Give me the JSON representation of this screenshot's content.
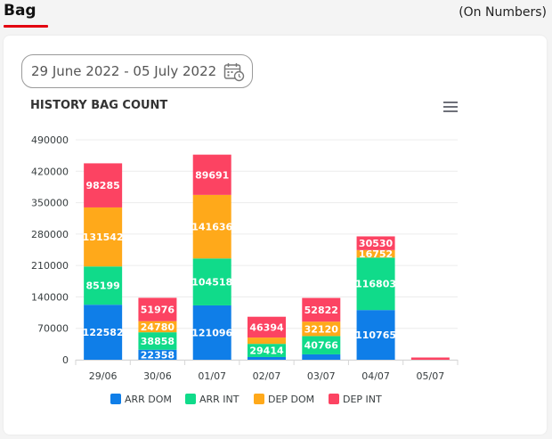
{
  "header": {
    "title": "Bag",
    "units_note": "(On Numbers)"
  },
  "filter": {
    "date_range": "29 June 2022 - 05 July 2022",
    "icon": "calendar-icon"
  },
  "chart_menu_icon": "menu-icon",
  "colors": {
    "ARR DOM": "#0f7ee8",
    "ARR INT": "#10db8a",
    "DEP DOM": "#ffa91a",
    "DEP INT": "#fc4362"
  },
  "chart_data": {
    "type": "bar",
    "stacked": true,
    "title": "HISTORY BAG COUNT",
    "xlabel": "",
    "ylabel": "",
    "categories": [
      "29/06",
      "30/06",
      "01/07",
      "02/07",
      "03/07",
      "04/07",
      "05/07"
    ],
    "y_ticks": [
      "0",
      "70000",
      "140000",
      "210000",
      "280000",
      "350000",
      "420000",
      "490000"
    ],
    "ylim": [
      0,
      490000
    ],
    "legend_position": "bottom",
    "grid": true,
    "series": [
      {
        "name": "ARR DOM",
        "values": [
          122582,
          22358,
          121096,
          6000,
          12000,
          110765,
          0
        ],
        "labels": [
          "122582",
          "22358",
          "121096",
          "",
          "",
          "110765",
          ""
        ]
      },
      {
        "name": "ARR INT",
        "values": [
          85199,
          38858,
          104518,
          29414,
          40766,
          116803,
          0
        ],
        "labels": [
          "85199",
          "38858",
          "104518",
          "29414",
          "40766",
          "116803",
          ""
        ]
      },
      {
        "name": "DEP DOM",
        "values": [
          131542,
          24780,
          141636,
          14000,
          32120,
          16752,
          0
        ],
        "labels": [
          "131542",
          "24780",
          "141636",
          "",
          "32120",
          "16752",
          ""
        ]
      },
      {
        "name": "DEP INT",
        "values": [
          98285,
          51976,
          89691,
          46394,
          52822,
          30530,
          5000
        ],
        "labels": [
          "98285",
          "51976",
          "89691",
          "46394",
          "52822",
          "30530",
          ""
        ]
      }
    ]
  }
}
